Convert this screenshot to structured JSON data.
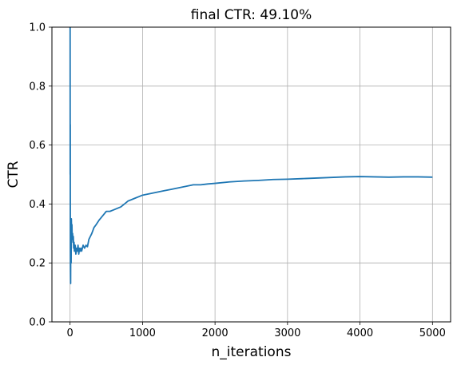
{
  "chart_data": {
    "type": "line",
    "title": "final CTR: 49.10%",
    "xlabel": "n_iterations",
    "ylabel": "CTR",
    "xlim": [
      -250,
      5250
    ],
    "ylim": [
      0.0,
      1.0
    ],
    "xticks": [
      0,
      1000,
      2000,
      3000,
      4000,
      5000
    ],
    "xtick_labels": [
      "0",
      "1000",
      "2000",
      "3000",
      "4000",
      "5000"
    ],
    "yticks": [
      0.0,
      0.2,
      0.4,
      0.6,
      0.8,
      1.0
    ],
    "ytick_labels": [
      "0.0",
      "0.2",
      "0.4",
      "0.6",
      "0.8",
      "1.0"
    ],
    "grid": true,
    "series": [
      {
        "color": "#1f77b4",
        "x": [
          1,
          2,
          3,
          4,
          5,
          6,
          8,
          10,
          12,
          15,
          18,
          22,
          26,
          30,
          35,
          40,
          45,
          50,
          55,
          60,
          70,
          80,
          90,
          100,
          110,
          120,
          130,
          140,
          150,
          160,
          180,
          200,
          220,
          240,
          260,
          280,
          300,
          330,
          360,
          400,
          450,
          500,
          550,
          600,
          650,
          700,
          750,
          800,
          850,
          900,
          950,
          1000,
          1100,
          1200,
          1300,
          1400,
          1500,
          1600,
          1700,
          1800,
          1900,
          2000,
          2200,
          2400,
          2600,
          2800,
          3000,
          3200,
          3400,
          3600,
          3800,
          4000,
          4200,
          4400,
          4600,
          4800,
          5000
        ],
        "y": [
          1.0,
          0.5,
          0.67,
          0.25,
          0.2,
          0.17,
          0.13,
          0.3,
          0.25,
          0.2,
          0.35,
          0.3,
          0.33,
          0.28,
          0.3,
          0.27,
          0.29,
          0.25,
          0.27,
          0.24,
          0.26,
          0.23,
          0.25,
          0.24,
          0.26,
          0.23,
          0.25,
          0.24,
          0.25,
          0.24,
          0.26,
          0.25,
          0.26,
          0.255,
          0.28,
          0.29,
          0.3,
          0.32,
          0.33,
          0.345,
          0.36,
          0.375,
          0.375,
          0.38,
          0.385,
          0.39,
          0.4,
          0.41,
          0.415,
          0.42,
          0.425,
          0.43,
          0.435,
          0.44,
          0.445,
          0.45,
          0.455,
          0.46,
          0.465,
          0.465,
          0.468,
          0.47,
          0.475,
          0.478,
          0.48,
          0.483,
          0.484,
          0.486,
          0.488,
          0.49,
          0.492,
          0.493,
          0.492,
          0.491,
          0.492,
          0.492,
          0.491
        ]
      }
    ]
  }
}
